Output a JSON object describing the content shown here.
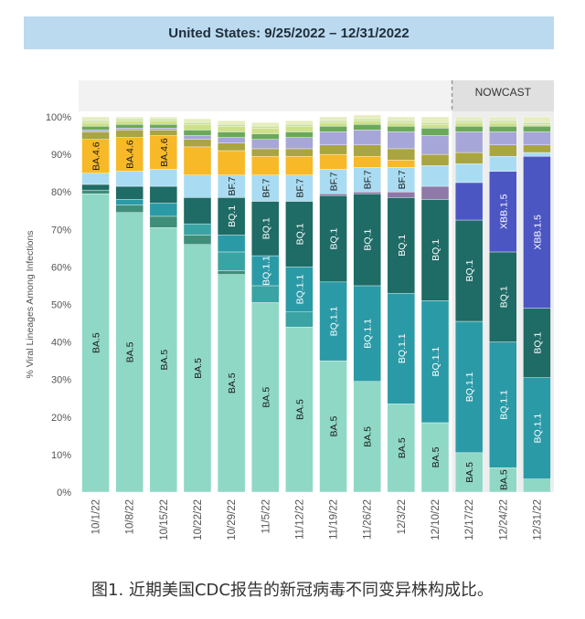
{
  "title": "United States: 9/25/2022 – 12/31/2022",
  "nowcast_label": "NOWCAST",
  "caption": "图1. 近期美国CDC报告的新冠病毒不同变异株构成比。",
  "colors": {
    "BA.5": "#8fd8c6",
    "BA.2.75": "#3aa3a3",
    "BQ.1.1": "#2b9aa7",
    "BQ.1": "#1f6b66",
    "BF.7": "#a9dcf2",
    "BA.4.6": "#f7b928",
    "XBB.1.5": "#4c56c3",
    "Other1": "#a7a6d8",
    "Other2": "#a9a540",
    "Other3": "#6aa95a",
    "Other4": "#cfe08b",
    "Other5": "#3e8e7a",
    "Other6": "#8e79a8",
    "Other7": "#c5dfa1",
    "Top": "#e7edbe"
  },
  "chart_data": {
    "type": "bar",
    "stacked": true,
    "ylabel": "% Viral Lineages Among Infections",
    "ylim": [
      0,
      100
    ],
    "yticks": [
      "0%",
      "10%",
      "20%",
      "30%",
      "40%",
      "50%",
      "60%",
      "70%",
      "80%",
      "90%",
      "100%"
    ],
    "categories": [
      "10/1/22",
      "10/8/22",
      "10/15/22",
      "10/22/22",
      "10/29/22",
      "11/5/22",
      "11/12/22",
      "11/19/22",
      "11/26/22",
      "12/3/22",
      "12/10/22",
      "12/17/22",
      "12/24/22",
      "12/31/22"
    ],
    "nowcast_from_index": 11,
    "series": [
      {
        "name": "BA.5",
        "values": [
          79.5,
          74.5,
          70.5,
          66,
          58,
          50.5,
          44,
          35,
          29.5,
          23.5,
          18.5,
          10.5,
          6.5,
          3.5
        ]
      },
      {
        "name": "Other5",
        "values": [
          1,
          2,
          3,
          2.5,
          1,
          0,
          0,
          0,
          0,
          0,
          0,
          0,
          0,
          0
        ]
      },
      {
        "name": "BA.2.75",
        "values": [
          0,
          0,
          0,
          3,
          5,
          4.5,
          4,
          0,
          0,
          0,
          0,
          0,
          0,
          0
        ]
      },
      {
        "name": "BQ.1.1",
        "values": [
          0,
          1.5,
          3.5,
          0,
          4.5,
          8,
          12,
          21,
          25.5,
          29.5,
          32.5,
          35,
          33.5,
          27
        ]
      },
      {
        "name": "BQ.1",
        "values": [
          1.5,
          3.5,
          4.5,
          7,
          10,
          14.5,
          17.5,
          23,
          24.5,
          25.5,
          27,
          27,
          24,
          18.5
        ]
      },
      {
        "name": "Other6",
        "values": [
          0,
          0,
          0,
          0,
          0,
          0,
          0,
          0.5,
          0.5,
          1.5,
          3.5,
          0,
          0,
          0
        ]
      },
      {
        "name": "XBB.1.5",
        "values": [
          0,
          0,
          0,
          0,
          0,
          0,
          0,
          0,
          0,
          0,
          0,
          10,
          21.5,
          40.5
        ]
      },
      {
        "name": "BF.7",
        "values": [
          3,
          4,
          4.5,
          6,
          6,
          7,
          7,
          6.5,
          6.5,
          6.5,
          5.5,
          5,
          4,
          1
        ]
      },
      {
        "name": "BA.4.6",
        "values": [
          9,
          9,
          9,
          7.5,
          6.5,
          5,
          5,
          4,
          3,
          2,
          0,
          0,
          0,
          0
        ]
      },
      {
        "name": "Other2",
        "values": [
          2,
          2,
          1.5,
          2,
          2,
          2,
          2,
          2.5,
          3,
          3,
          3,
          3,
          3,
          2
        ]
      },
      {
        "name": "Other1",
        "values": [
          0.5,
          0.5,
          0.5,
          1,
          1.5,
          2.5,
          3,
          3.5,
          4,
          4.5,
          5,
          5.5,
          3.5,
          3.5
        ]
      },
      {
        "name": "Other3",
        "values": [
          1,
          1,
          1,
          1.5,
          1.5,
          1.5,
          1.5,
          1.5,
          1.5,
          1.5,
          2,
          1.5,
          1.5,
          1.5
        ]
      },
      {
        "name": "Other4",
        "values": [
          1,
          1,
          1,
          1.5,
          1.5,
          1.5,
          1.5,
          1,
          1,
          1,
          1,
          1,
          1,
          0.5
        ]
      },
      {
        "name": "Other7",
        "values": [
          0.5,
          0.5,
          0.5,
          0.5,
          0.5,
          0.5,
          0.5,
          0.5,
          0.5,
          0.5,
          0.5,
          0.5,
          0.5,
          0.5
        ]
      },
      {
        "name": "Top",
        "values": [
          1,
          0.5,
          0.5,
          1,
          1,
          1,
          1,
          1,
          1,
          1,
          1.5,
          1,
          1,
          1.5
        ]
      }
    ],
    "bar_labels": [
      {
        "series": "BA.5",
        "text": "BA.5",
        "bars": [
          0,
          1,
          2,
          3,
          4,
          5,
          6,
          7,
          8,
          9,
          10,
          11,
          12
        ]
      },
      {
        "series": "BA.4.6",
        "text": "BA.4.6",
        "bars": [
          0,
          1,
          2
        ]
      },
      {
        "series": "BF.7",
        "text": "BF.7",
        "bars": [
          4,
          5,
          6,
          7,
          8,
          9
        ]
      },
      {
        "series": "BQ.1",
        "text": "BQ.1",
        "bars": [
          4,
          5,
          6,
          7,
          8,
          9,
          10,
          11,
          12,
          13
        ]
      },
      {
        "series": "BQ.1.1",
        "text": "BQ.1.1",
        "bars": [
          5,
          6,
          7,
          8,
          9,
          10,
          11,
          12,
          13
        ]
      },
      {
        "series": "XBB.1.5",
        "text": "XBB.1.5",
        "bars": [
          12,
          13
        ]
      }
    ],
    "light_label_series": [
      "BQ.1",
      "BQ.1.1",
      "XBB.1.5"
    ]
  }
}
